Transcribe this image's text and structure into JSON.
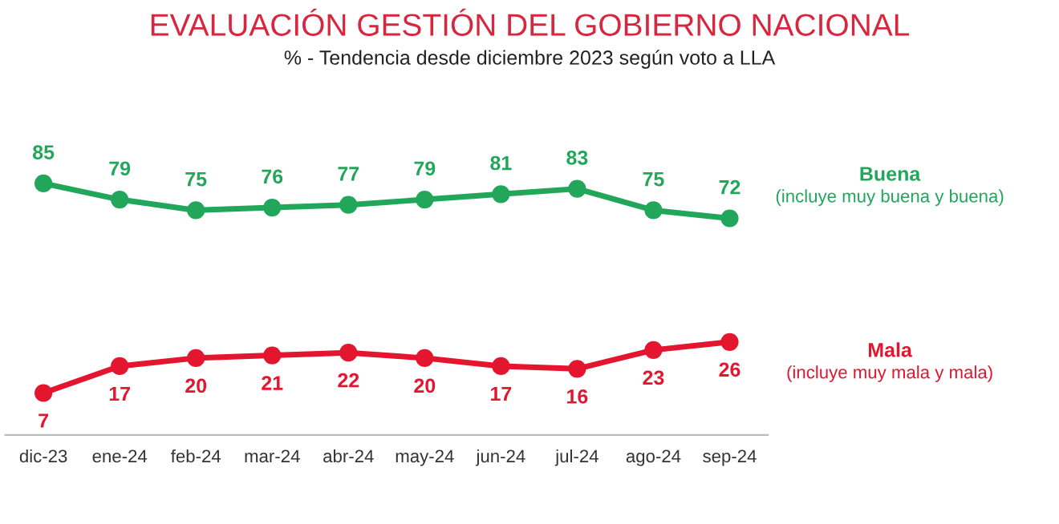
{
  "chart_data": {
    "type": "line",
    "title": "EVALUACIÓN GESTIÓN DEL GOBIERNO NACIONAL",
    "subtitle": "% - Tendencia desde diciembre 2023 según voto a LLA",
    "categories": [
      "dic-23",
      "ene-24",
      "feb-24",
      "mar-24",
      "abr-24",
      "may-24",
      "jun-24",
      "jul-24",
      "ago-24",
      "sep-24"
    ],
    "series": [
      {
        "name": "Buena",
        "color": "#22a65a",
        "values": [
          85,
          79,
          75,
          76,
          77,
          79,
          81,
          83,
          75,
          72
        ]
      },
      {
        "name": "Mala",
        "color": "#e3152f",
        "values": [
          7,
          17,
          20,
          21,
          22,
          20,
          17,
          16,
          23,
          26
        ]
      }
    ],
    "annotations": [
      "(incluye muy buena y buena)",
      "(incluye muy mala y mala)"
    ],
    "data_labels": true,
    "marker": "circle",
    "line_style": "solid",
    "grid": false,
    "legend": false
  }
}
